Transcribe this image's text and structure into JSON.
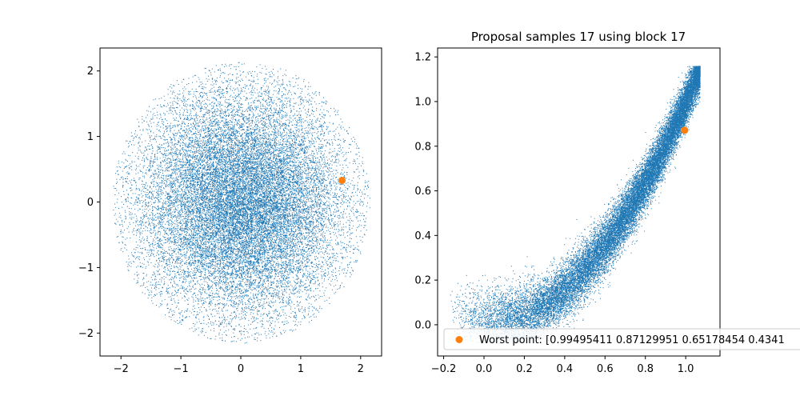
{
  "chart_data": [
    {
      "type": "scatter",
      "title": "",
      "xlabel": "",
      "ylabel": "",
      "xlim": [
        -2.35,
        2.35
      ],
      "ylim": [
        -2.35,
        2.35
      ],
      "xticks": [
        -2,
        -1,
        0,
        1,
        2
      ],
      "yticks": [
        -2,
        -1,
        0,
        1,
        2
      ],
      "xtick_labels": [
        "−2",
        "−1",
        "0",
        "1",
        "2"
      ],
      "ytick_labels": [
        "−2",
        "−1",
        "0",
        "1",
        "2"
      ],
      "grid": false,
      "series": [
        {
          "kind": "samples",
          "color": "#1f77b4",
          "distribution": "standard-normal-disk",
          "center": [
            0,
            0
          ],
          "radius": 2.15,
          "approx_count": 40000
        },
        {
          "kind": "highlight-point",
          "color": "#ff7f0e",
          "points": [
            [
              1.69,
              0.33
            ]
          ]
        }
      ]
    },
    {
      "type": "scatter",
      "title": "Proposal samples 17 using block 17",
      "xlabel": "",
      "ylabel": "",
      "xlim": [
        -0.23,
        1.17
      ],
      "ylim": [
        -0.14,
        1.24
      ],
      "xticks": [
        -0.2,
        0.0,
        0.2,
        0.4,
        0.6,
        0.8,
        1.0
      ],
      "yticks": [
        0.0,
        0.2,
        0.4,
        0.6,
        0.8,
        1.0,
        1.2
      ],
      "xtick_labels": [
        "−0.2",
        "0.0",
        "0.2",
        "0.4",
        "0.6",
        "0.8",
        "1.0"
      ],
      "ytick_labels": [
        "0.0",
        "0.2",
        "0.4",
        "0.6",
        "0.8",
        "1.0",
        "1.2"
      ],
      "grid": false,
      "legend_position": "lower-right",
      "series": [
        {
          "kind": "samples",
          "color": "#1f77b4",
          "distribution": "banana-curve",
          "x_range": [
            -0.17,
            1.08
          ],
          "curve": "y ≈ x^2",
          "approx_count": 40000
        },
        {
          "kind": "highlight-point",
          "color": "#ff7f0e",
          "name": "Worst point: [0.99495411 0.87129951 0.65178454 0.4341",
          "points": [
            [
              0.99495411,
              0.87129951
            ]
          ]
        }
      ]
    }
  ]
}
